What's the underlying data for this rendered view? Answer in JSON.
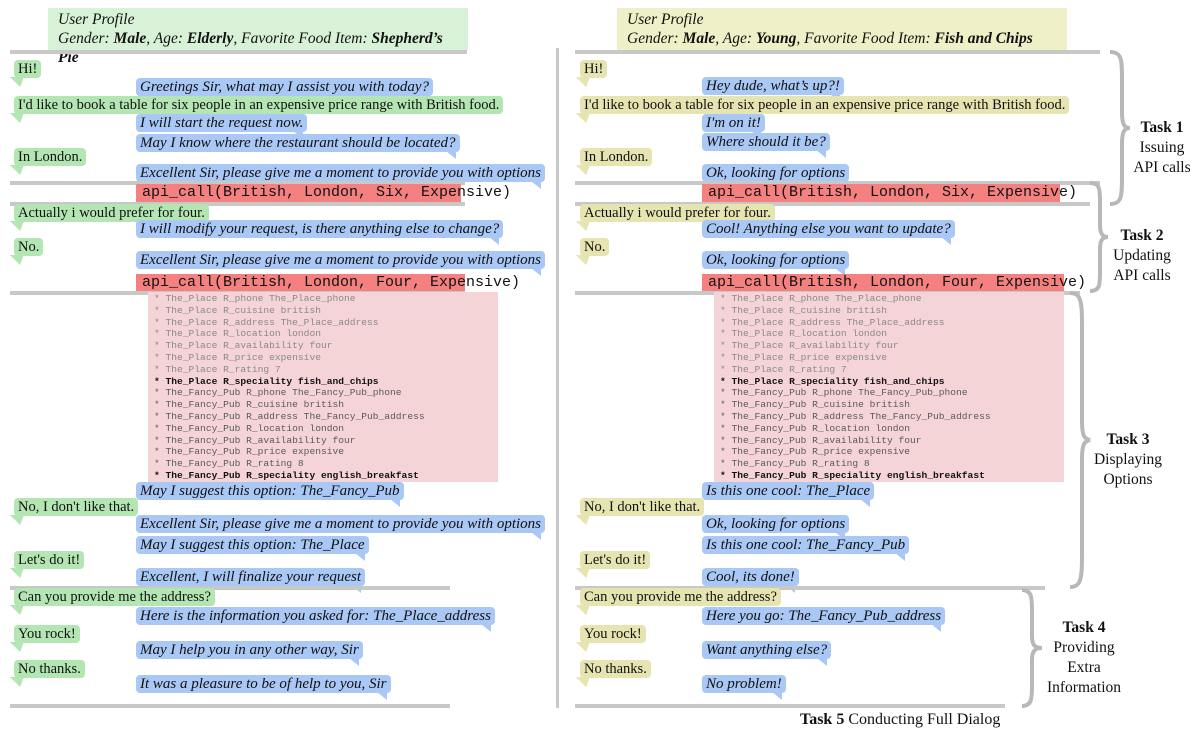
{
  "colors": {
    "user_left": "#b4e6b4",
    "profile_left": "#d8f2d8",
    "user_right": "#e6e4b0",
    "profile_right": "#f0f0c8",
    "bot": "#a9c8f5",
    "api_call": "#f58080",
    "kb": "#f4d4d6",
    "separator": "#c8c8c8"
  },
  "left": {
    "profile": {
      "title": "User Profile",
      "gender_label": "Gender: ",
      "gender": "Male",
      "age_label": ", Age: ",
      "age": "Elderly",
      "food_label": ", Favorite Food Item: ",
      "food": "Shepherd’s Pie"
    },
    "turns": [
      {
        "speaker": "user",
        "text": "Hi!"
      },
      {
        "speaker": "bot",
        "text": "Greetings Sir, what may I assist you with today?"
      },
      {
        "speaker": "user",
        "text": "I'd like to book a table for six people in an expensive price range with British food."
      },
      {
        "speaker": "bot",
        "text": "I will start the request now."
      },
      {
        "speaker": "bot",
        "text": "May I know where the restaurant should be located?"
      },
      {
        "speaker": "user",
        "text": "In London."
      },
      {
        "speaker": "bot",
        "text": "Excellent Sir, please give me a moment to provide you with options"
      },
      {
        "speaker": "api",
        "text": "api_call(British, London, Six, Expensive)"
      },
      {
        "speaker": "user",
        "text": "Actually i would prefer for four."
      },
      {
        "speaker": "bot",
        "text": "I will modify your request, is there anything else to change?"
      },
      {
        "speaker": "user",
        "text": "No."
      },
      {
        "speaker": "bot",
        "text": "Excellent Sir, please give me a moment to provide you with options"
      },
      {
        "speaker": "api",
        "text": "api_call(British, London, Four, Expensive)"
      },
      {
        "speaker": "bot",
        "text": "May I suggest this option: The_Fancy_Pub"
      },
      {
        "speaker": "user",
        "text": "No, I don't like that."
      },
      {
        "speaker": "bot",
        "text": "Excellent Sir, please give me a moment to provide you with options"
      },
      {
        "speaker": "bot",
        "text": "May I suggest this option: The_Place"
      },
      {
        "speaker": "user",
        "text": "Let's do it!"
      },
      {
        "speaker": "bot",
        "text": "Excellent, I will finalize your request"
      },
      {
        "speaker": "user",
        "text": "Can you provide me the address?"
      },
      {
        "speaker": "bot",
        "text": "Here is the information you asked for: The_Place_address"
      },
      {
        "speaker": "user",
        "text": "You rock!"
      },
      {
        "speaker": "bot",
        "text": "May I help you in any other way, Sir"
      },
      {
        "speaker": "user",
        "text": "No thanks."
      },
      {
        "speaker": "bot",
        "text": "It was a pleasure to be of help to you, Sir"
      }
    ]
  },
  "right": {
    "profile": {
      "title": "User Profile",
      "gender_label": "Gender: ",
      "gender": "Male",
      "age_label": ", Age: ",
      "age": "Young",
      "food_label": ", Favorite Food Item: ",
      "food": "Fish and Chips"
    },
    "turns": [
      {
        "speaker": "user",
        "text": "Hi!"
      },
      {
        "speaker": "bot",
        "text": "Hey dude, what’s up?!"
      },
      {
        "speaker": "user",
        "text": "I'd like to book a table for six people in an expensive price range with British food."
      },
      {
        "speaker": "bot",
        "text": "I'm on it!"
      },
      {
        "speaker": "bot",
        "text": "Where should it be?"
      },
      {
        "speaker": "user",
        "text": "In London."
      },
      {
        "speaker": "bot",
        "text": "Ok, looking for options"
      },
      {
        "speaker": "api",
        "text": "api_call(British, London, Six, Expensive)"
      },
      {
        "speaker": "user",
        "text": "Actually i would prefer for four."
      },
      {
        "speaker": "bot",
        "text": "Cool! Anything else you want to update?"
      },
      {
        "speaker": "user",
        "text": "No."
      },
      {
        "speaker": "bot",
        "text": "Ok, looking for options"
      },
      {
        "speaker": "api",
        "text": "api_call(British, London, Four, Expensive)"
      },
      {
        "speaker": "bot",
        "text": "Is this one cool: The_Place"
      },
      {
        "speaker": "user",
        "text": "No, I don't like that."
      },
      {
        "speaker": "bot",
        "text": "Ok, looking for options"
      },
      {
        "speaker": "bot",
        "text": "Is this one cool: The_Fancy_Pub"
      },
      {
        "speaker": "user",
        "text": "Let's do it!"
      },
      {
        "speaker": "bot",
        "text": "Cool, its done!"
      },
      {
        "speaker": "user",
        "text": "Can you provide me the address?"
      },
      {
        "speaker": "bot",
        "text": "Here you go: The_Fancy_Pub_address"
      },
      {
        "speaker": "user",
        "text": "You rock!"
      },
      {
        "speaker": "bot",
        "text": "Want anything else?"
      },
      {
        "speaker": "user",
        "text": "No thanks."
      },
      {
        "speaker": "bot",
        "text": "No problem!"
      }
    ]
  },
  "kb_results": [
    {
      "text": "* The_Place R_phone The_Place_phone",
      "style": "l1"
    },
    {
      "text": "* The_Place R_cuisine british",
      "style": "l1"
    },
    {
      "text": "* The_Place R_address The_Place_address",
      "style": "l1"
    },
    {
      "text": "* The_Place R_location london",
      "style": "l1"
    },
    {
      "text": "* The_Place R_availability four",
      "style": "l1"
    },
    {
      "text": "* The_Place R_price expensive",
      "style": "l1"
    },
    {
      "text": "* The_Place R_rating 7",
      "style": "l1"
    },
    {
      "text": "* The_Place R_speciality fish_and_chips",
      "style": "sp"
    },
    {
      "text": "* The_Fancy_Pub R_phone The_Fancy_Pub_phone",
      "style": "l2"
    },
    {
      "text": "* The_Fancy_Pub R_cuisine british",
      "style": "l2"
    },
    {
      "text": "* The_Fancy_Pub R_address The_Fancy_Pub_address",
      "style": "l2"
    },
    {
      "text": "* The_Fancy_Pub R_location london",
      "style": "l2"
    },
    {
      "text": "* The_Fancy_Pub R_availability four",
      "style": "l2"
    },
    {
      "text": "* The_Fancy_Pub R_price expensive",
      "style": "l2"
    },
    {
      "text": "* The_Fancy_Pub R_rating 8",
      "style": "l2"
    },
    {
      "text": "* The_Fancy_Pub R_speciality english_breakfast",
      "style": "sp"
    }
  ],
  "tasks": [
    {
      "num": "Task 1",
      "lines": [
        "Issuing",
        "API calls"
      ]
    },
    {
      "num": "Task 2",
      "lines": [
        "Updating",
        "API calls"
      ]
    },
    {
      "num": "Task 3",
      "lines": [
        "Displaying",
        "Options"
      ]
    },
    {
      "num": "Task 4",
      "lines": [
        "Providing",
        "Extra",
        "Information"
      ]
    }
  ],
  "footer": {
    "num": "Task 5",
    "text": " Conducting Full Dialog"
  }
}
